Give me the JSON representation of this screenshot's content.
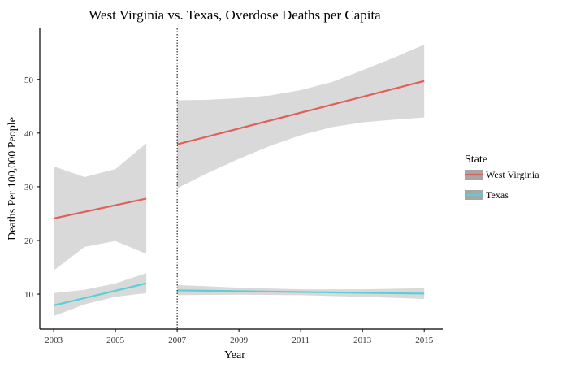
{
  "chart_data": {
    "type": "line",
    "title": "West Virginia vs. Texas, Overdose Deaths per Capita",
    "xlabel": "Year",
    "ylabel": "Deaths Per 100,000 People",
    "xlim": [
      2002.55,
      2015.6
    ],
    "ylim": [
      3.5,
      59.5
    ],
    "x_ticks": [
      2003,
      2005,
      2007,
      2009,
      2011,
      2013,
      2015
    ],
    "y_ticks": [
      10,
      20,
      30,
      40,
      50
    ],
    "vline": {
      "x": 2007,
      "style": "dotted"
    },
    "legend": {
      "title": "State",
      "position": "right"
    },
    "series": [
      {
        "name": "West Virginia",
        "color": "#e0605a",
        "segments": [
          {
            "x": [
              2003,
              2006
            ],
            "fit": [
              24.1,
              27.8
            ],
            "band_x": [
              2003,
              2004,
              2005,
              2006
            ],
            "band_upper": [
              33.8,
              31.8,
              33.3,
              38.1
            ],
            "band_lower": [
              14.4,
              18.8,
              19.9,
              17.5
            ]
          },
          {
            "x": [
              2007,
              2015
            ],
            "fit": [
              37.9,
              49.7
            ],
            "band_x": [
              2007,
              2008,
              2009,
              2010,
              2011,
              2012,
              2013,
              2014,
              2015
            ],
            "band_upper": [
              46.1,
              46.2,
              46.5,
              47.0,
              48.0,
              49.5,
              51.7,
              54.0,
              56.5
            ],
            "band_lower": [
              29.7,
              32.6,
              35.2,
              37.6,
              39.6,
              41.1,
              42.0,
              42.5,
              42.9
            ]
          }
        ]
      },
      {
        "name": "Texas",
        "color": "#5bcfd8",
        "segments": [
          {
            "x": [
              2003,
              2006
            ],
            "fit": [
              7.9,
              12.0
            ],
            "band_x": [
              2003,
              2004,
              2005,
              2006
            ],
            "band_upper": [
              10.2,
              10.8,
              12.0,
              13.9
            ],
            "band_lower": [
              5.9,
              8.1,
              9.5,
              10.2
            ]
          },
          {
            "x": [
              2007,
              2015
            ],
            "fit": [
              10.7,
              10.1
            ],
            "band_x": [
              2007,
              2009,
              2011,
              2013,
              2015
            ],
            "band_upper": [
              11.7,
              11.2,
              10.9,
              10.9,
              11.1
            ],
            "band_lower": [
              9.8,
              9.9,
              9.8,
              9.5,
              9.1
            ]
          }
        ]
      }
    ]
  }
}
